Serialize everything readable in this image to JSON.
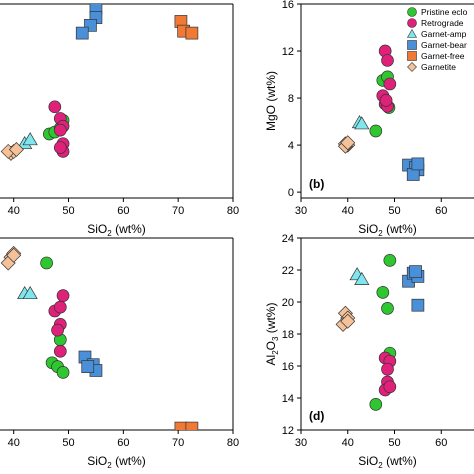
{
  "colors": {
    "pristine": "#2fc72f",
    "retrograde": "#e0217a",
    "garnet_amp": "#7fe6ee",
    "garnet_bear": "#4a90d9",
    "garnet_free": "#f07a35",
    "garnetite": "#f5c199"
  },
  "legend": [
    {
      "key": "pristine",
      "label": "Pristine eclo",
      "shape": "circle"
    },
    {
      "key": "retrograde",
      "label": "Retrograde",
      "shape": "circle"
    },
    {
      "key": "garnet_amp",
      "label": "Garnet-amp",
      "shape": "triangle"
    },
    {
      "key": "garnet_bear",
      "label": "Garnet-bear",
      "shape": "square"
    },
    {
      "key": "garnet_free",
      "label": "Garnet-free",
      "shape": "square"
    },
    {
      "key": "garnetite",
      "label": "Garnetite",
      "shape": "diamond"
    }
  ],
  "chart_data": [
    {
      "type": "scatter",
      "panel_label": "",
      "xlabel_main": "SiO",
      "xlabel_sub": "2",
      "xlabel_tail": " (wt%)",
      "ylabel_main": "",
      "ylabel_sub": "",
      "ylabel_tail": "",
      "xlim": [
        37.5,
        80
      ],
      "ylim": [
        0,
        100
      ],
      "xticks": [
        "40",
        "50",
        "60",
        "70",
        "80"
      ],
      "xtick_values": [
        40,
        50,
        60,
        70,
        80
      ],
      "yticks": [],
      "ytick_values": [],
      "series": [
        {
          "key": "pristine",
          "points": [
            [
              46.5,
              33
            ],
            [
              47.5,
              34
            ],
            [
              48.5,
              36
            ],
            [
              49.0,
              40
            ]
          ]
        },
        {
          "key": "retrograde",
          "points": [
            [
              47.5,
              47
            ],
            [
              48.5,
              41
            ],
            [
              49.0,
              37
            ],
            [
              48.5,
              35
            ],
            [
              49.0,
              28
            ],
            [
              49.0,
              24
            ],
            [
              48.5,
              26
            ]
          ]
        },
        {
          "key": "garnet_amp",
          "points": [
            [
              42.0,
              28
            ],
            [
              43.0,
              30
            ]
          ]
        },
        {
          "key": "garnet_bear",
          "points": [
            [
              55.0,
              98
            ],
            [
              55.0,
              93
            ],
            [
              54.0,
              89
            ],
            [
              52.5,
              85
            ]
          ]
        },
        {
          "key": "garnet_free",
          "points": [
            [
              70.5,
              91
            ],
            [
              71.0,
              86
            ],
            [
              72.5,
              85
            ]
          ]
        },
        {
          "key": "garnetite",
          "points": [
            [
              39.5,
              23
            ],
            [
              40.0,
              24
            ],
            [
              39.0,
              24
            ],
            [
              40.5,
              25
            ]
          ]
        }
      ]
    },
    {
      "type": "scatter",
      "panel_label": "(b)",
      "xlabel_main": "SiO",
      "xlabel_sub": "2",
      "xlabel_tail": " (wt%)",
      "ylabel_main": "MgO (wt%)",
      "ylabel_sub": "",
      "ylabel_tail": "",
      "xlim": [
        30,
        67
      ],
      "ylim": [
        -0.5,
        16
      ],
      "xticks": [
        "30",
        "40",
        "50",
        "60"
      ],
      "xtick_values": [
        30,
        40,
        50,
        60
      ],
      "yticks": [
        "0",
        "4",
        "8",
        "12",
        "16"
      ],
      "ytick_values": [
        0,
        4,
        8,
        12,
        16
      ],
      "series": [
        {
          "key": "pristine",
          "points": [
            [
              46.0,
              5.2
            ],
            [
              47.5,
              9.5
            ],
            [
              48.5,
              9.8
            ],
            [
              48.8,
              7.2
            ]
          ]
        },
        {
          "key": "retrograde",
          "points": [
            [
              48.0,
              12.0
            ],
            [
              48.5,
              11.2
            ],
            [
              49.0,
              9.2
            ],
            [
              48.0,
              7.5
            ],
            [
              48.5,
              7.3
            ],
            [
              47.5,
              8.2
            ],
            [
              48.2,
              7.8
            ]
          ]
        },
        {
          "key": "garnet_amp",
          "points": [
            [
              42.5,
              5.9
            ],
            [
              43.0,
              5.8
            ]
          ]
        },
        {
          "key": "garnet_bear",
          "points": [
            [
              53.0,
              2.3
            ],
            [
              54.5,
              2.1
            ],
            [
              55.0,
              1.9
            ],
            [
              54.0,
              1.5
            ],
            [
              55.0,
              2.4
            ]
          ]
        },
        {
          "key": "garnet_free",
          "points": []
        },
        {
          "key": "garnetite",
          "points": [
            [
              39.5,
              4.1
            ],
            [
              40.0,
              4.0
            ],
            [
              39.5,
              3.9
            ],
            [
              40.0,
              4.2
            ]
          ]
        }
      ]
    },
    {
      "type": "scatter",
      "panel_label": "",
      "xlabel_main": "SiO",
      "xlabel_sub": "2",
      "xlabel_tail": " (wt%)",
      "ylabel_main": "",
      "ylabel_sub": "",
      "ylabel_tail": "",
      "xlim": [
        37.5,
        80
      ],
      "ylim": [
        0,
        100
      ],
      "xticks": [
        "40",
        "50",
        "60",
        "70",
        "80"
      ],
      "xtick_values": [
        40,
        50,
        60,
        70,
        80
      ],
      "yticks": [],
      "ytick_values": [],
      "series": [
        {
          "key": "pristine",
          "points": [
            [
              46.0,
              87
            ],
            [
              48.5,
              47
            ],
            [
              47.0,
              35
            ],
            [
              48.0,
              33
            ],
            [
              49.0,
              30
            ]
          ]
        },
        {
          "key": "retrograde",
          "points": [
            [
              49.0,
              70
            ],
            [
              47.5,
              62
            ],
            [
              48.5,
              64
            ],
            [
              48.5,
              55
            ],
            [
              48.0,
              52
            ],
            [
              48.5,
              41
            ]
          ]
        },
        {
          "key": "garnet_amp",
          "points": [
            [
              42.0,
              71
            ],
            [
              43.0,
              71
            ]
          ]
        },
        {
          "key": "garnet_bear",
          "points": [
            [
              53.0,
              38
            ],
            [
              54.5,
              34
            ],
            [
              55.0,
              31
            ],
            [
              53.5,
              33
            ]
          ]
        },
        {
          "key": "garnet_free",
          "points": [
            [
              70.5,
              1
            ],
            [
              72.5,
              1
            ]
          ]
        },
        {
          "key": "garnetite",
          "points": [
            [
              39.5,
              90
            ],
            [
              40.0,
              92
            ],
            [
              39.0,
              87
            ],
            [
              40.0,
              91
            ]
          ]
        }
      ]
    },
    {
      "type": "scatter",
      "panel_label": "(d)",
      "xlabel_main": "SiO",
      "xlabel_sub": "2",
      "xlabel_tail": " (wt%)",
      "ylabel_main": "Al",
      "ylabel_sub": "2",
      "ylabel_tail": "O",
      "ylabel_sub2": "3",
      "ylabel_tail2": " (wt%)",
      "xlim": [
        30,
        67
      ],
      "ylim": [
        12,
        24
      ],
      "xticks": [
        "30",
        "40",
        "50",
        "60"
      ],
      "xtick_values": [
        30,
        40,
        50,
        60
      ],
      "yticks": [
        "12",
        "14",
        "16",
        "18",
        "20",
        "22",
        "24"
      ],
      "ytick_values": [
        12,
        14,
        16,
        18,
        20,
        22,
        24
      ],
      "series": [
        {
          "key": "pristine",
          "points": [
            [
              49.0,
              22.6
            ],
            [
              47.5,
              20.6
            ],
            [
              48.5,
              19.6
            ],
            [
              49.0,
              16.8
            ],
            [
              46.0,
              13.6
            ]
          ]
        },
        {
          "key": "retrograde",
          "points": [
            [
              48.0,
              16.5
            ],
            [
              49.0,
              16.3
            ],
            [
              48.5,
              15.8
            ],
            [
              48.5,
              15.0
            ],
            [
              48.0,
              14.5
            ],
            [
              49.0,
              14.7
            ]
          ]
        },
        {
          "key": "garnet_amp",
          "points": [
            [
              42.0,
              21.7
            ],
            [
              43.0,
              21.4
            ]
          ]
        },
        {
          "key": "garnet_bear",
          "points": [
            [
              53.0,
              21.3
            ],
            [
              54.0,
              21.8
            ],
            [
              55.0,
              21.6
            ],
            [
              54.5,
              21.9
            ],
            [
              55.0,
              19.8
            ]
          ]
        },
        {
          "key": "garnet_free",
          "points": []
        },
        {
          "key": "garnetite",
          "points": [
            [
              39.5,
              19.3
            ],
            [
              40.0,
              19.0
            ],
            [
              39.0,
              18.6
            ],
            [
              40.0,
              18.8
            ]
          ]
        }
      ]
    }
  ]
}
